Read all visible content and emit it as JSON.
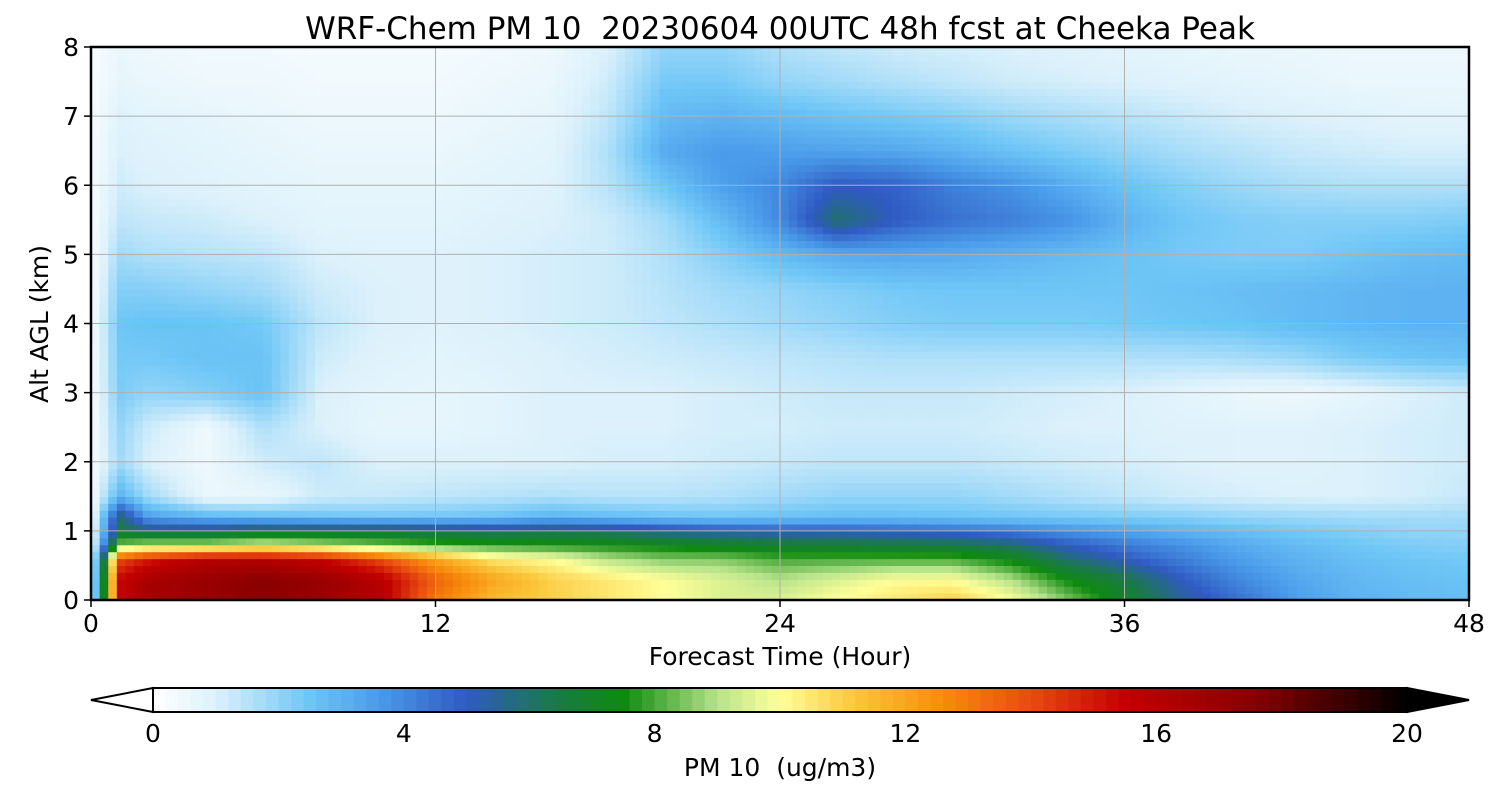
{
  "chart_data": {
    "type": "heatmap",
    "title": "WRF-Chem PM 10  20230604 00UTC 48h fcst at Cheeka Peak",
    "xlabel": "Forecast Time (Hour)",
    "ylabel": "Alt AGL (km)",
    "xlim": [
      0,
      48
    ],
    "ylim": [
      0,
      8
    ],
    "xticks": [
      0,
      12,
      24,
      36,
      48
    ],
    "yticks": [
      0,
      1,
      2,
      3,
      4,
      5,
      6,
      7,
      8
    ],
    "grid": true,
    "x": [
      0,
      1,
      2,
      4,
      6,
      8,
      10,
      12,
      14,
      16,
      18,
      20,
      22,
      24,
      26,
      28,
      30,
      32,
      34,
      36,
      38,
      40,
      42,
      44,
      46,
      48
    ],
    "y": [
      0,
      0.3,
      0.6,
      0.8,
      1.0,
      1.2,
      1.5,
      2,
      2.5,
      3,
      3.5,
      4,
      4.5,
      5,
      5.5,
      6,
      6.5,
      7,
      7.5,
      8
    ],
    "z": [
      [
        0.3,
        15.5,
        16.5,
        17.0,
        17.5,
        17.0,
        16.0,
        13.0,
        11.5,
        11.0,
        10.5,
        10.0,
        9.5,
        9.5,
        10.0,
        10.5,
        11.0,
        10.0,
        8.5,
        7.0,
        5.5,
        4.5,
        3.5,
        3.0,
        2.8,
        2.7
      ],
      [
        0.3,
        15.5,
        16.5,
        17.0,
        17.5,
        17.0,
        16.0,
        13.5,
        12.0,
        11.0,
        10.5,
        10.0,
        9.5,
        9.0,
        9.5,
        10.0,
        10.0,
        9.0,
        7.5,
        6.5,
        5.0,
        4.0,
        3.3,
        2.9,
        2.7,
        2.6
      ],
      [
        0.3,
        14.0,
        15.0,
        16.0,
        16.0,
        15.5,
        14.0,
        12.0,
        10.5,
        10.0,
        9.0,
        8.5,
        8.5,
        8.0,
        8.0,
        8.0,
        8.0,
        7.3,
        6.0,
        5.0,
        4.2,
        3.5,
        3.0,
        2.7,
        2.5,
        2.4
      ],
      [
        0.3,
        8.5,
        9.0,
        9.0,
        9.5,
        9.0,
        8.5,
        8.0,
        7.8,
        7.6,
        7.5,
        7.3,
        7.0,
        6.8,
        6.7,
        6.6,
        6.5,
        6.0,
        5.0,
        4.3,
        3.8,
        3.2,
        2.8,
        2.5,
        2.3,
        2.2
      ],
      [
        0.3,
        6.5,
        6.0,
        6.0,
        6.5,
        6.5,
        6.5,
        6.3,
        6.0,
        6.2,
        6.0,
        5.5,
        5.2,
        5.0,
        5.0,
        4.8,
        4.6,
        4.3,
        3.8,
        3.4,
        3.0,
        2.7,
        2.4,
        2.2,
        2.0,
        2.0
      ],
      [
        0.2,
        6.0,
        3.5,
        3.0,
        2.8,
        2.6,
        2.5,
        2.5,
        2.6,
        3.0,
        2.8,
        2.6,
        2.5,
        2.6,
        2.7,
        2.7,
        2.6,
        2.5,
        2.4,
        2.3,
        2.2,
        2.0,
        1.9,
        1.8,
        1.8,
        1.8
      ],
      [
        0.2,
        3.0,
        1.8,
        0.6,
        0.6,
        1.2,
        1.3,
        1.4,
        1.5,
        1.6,
        1.5,
        1.5,
        1.6,
        1.8,
        2.0,
        2.0,
        2.0,
        1.8,
        1.6,
        1.4,
        1.2,
        1.1,
        1.0,
        1.0,
        1.1,
        1.3
      ],
      [
        0.2,
        1.8,
        1.0,
        0.5,
        1.2,
        1.4,
        1.0,
        1.0,
        1.0,
        1.0,
        1.1,
        1.1,
        1.2,
        1.3,
        1.4,
        1.4,
        1.4,
        1.3,
        1.2,
        1.1,
        1.0,
        0.9,
        0.9,
        1.0,
        1.1,
        1.2
      ],
      [
        0.2,
        2.0,
        1.2,
        0.5,
        1.6,
        1.0,
        0.7,
        0.7,
        0.8,
        1.0,
        1.0,
        1.0,
        1.1,
        1.1,
        1.2,
        1.2,
        1.2,
        1.1,
        1.0,
        1.0,
        0.9,
        0.9,
        0.9,
        1.0,
        1.1,
        1.2
      ],
      [
        0.2,
        2.3,
        2.0,
        2.2,
        2.6,
        1.0,
        0.8,
        0.7,
        0.8,
        1.0,
        1.0,
        1.0,
        1.1,
        1.2,
        1.3,
        1.3,
        1.3,
        1.2,
        1.1,
        1.0,
        0.8,
        0.6,
        0.5,
        0.7,
        1.0,
        1.2
      ],
      [
        0.2,
        2.4,
        2.4,
        2.6,
        2.6,
        1.2,
        0.9,
        0.8,
        0.9,
        1.0,
        1.1,
        1.2,
        1.3,
        1.4,
        1.5,
        1.6,
        1.6,
        1.6,
        1.6,
        1.6,
        1.6,
        1.7,
        1.9,
        2.3,
        2.5,
        2.6
      ],
      [
        0.2,
        2.5,
        2.6,
        2.6,
        2.4,
        1.4,
        1.0,
        0.9,
        1.0,
        1.1,
        1.2,
        1.4,
        1.6,
        1.8,
        2.0,
        2.2,
        2.3,
        2.3,
        2.3,
        2.4,
        2.5,
        2.6,
        2.8,
        2.9,
        3.0,
        3.0
      ],
      [
        0.2,
        2.2,
        2.2,
        2.0,
        1.8,
        1.2,
        1.0,
        0.9,
        1.0,
        1.1,
        1.2,
        1.5,
        1.8,
        2.0,
        2.2,
        2.4,
        2.5,
        2.5,
        2.5,
        2.5,
        2.6,
        2.7,
        2.8,
        2.9,
        3.0,
        3.0
      ],
      [
        0.2,
        1.8,
        1.6,
        1.5,
        1.4,
        1.0,
        0.9,
        0.9,
        1.0,
        1.1,
        1.2,
        1.6,
        2.2,
        2.8,
        3.2,
        3.3,
        3.2,
        3.0,
        2.8,
        2.6,
        2.4,
        2.3,
        2.3,
        2.5,
        2.7,
        2.8
      ],
      [
        0.2,
        1.4,
        1.3,
        1.2,
        1.0,
        0.8,
        0.8,
        0.8,
        0.9,
        1.0,
        1.2,
        1.8,
        2.8,
        4.0,
        6.0,
        5.0,
        4.5,
        4.2,
        3.8,
        3.0,
        2.5,
        2.3,
        2.2,
        2.2,
        2.2,
        2.3
      ],
      [
        0.2,
        1.2,
        1.0,
        0.9,
        0.8,
        0.7,
        0.7,
        0.7,
        0.8,
        0.9,
        1.5,
        2.5,
        3.5,
        4.0,
        5.0,
        4.8,
        4.2,
        3.8,
        3.2,
        2.6,
        2.2,
        1.9,
        1.7,
        1.6,
        1.6,
        1.6
      ],
      [
        0.2,
        1.0,
        0.9,
        0.8,
        0.7,
        0.6,
        0.6,
        0.6,
        0.7,
        0.8,
        1.6,
        3.2,
        3.6,
        3.5,
        3.4,
        3.3,
        3.0,
        2.6,
        2.3,
        2.0,
        1.7,
        1.5,
        1.3,
        1.2,
        1.1,
        1.1
      ],
      [
        0.2,
        0.9,
        0.8,
        0.7,
        0.6,
        0.5,
        0.5,
        0.5,
        0.6,
        0.7,
        1.4,
        2.8,
        3.0,
        2.8,
        2.6,
        2.4,
        2.2,
        1.9,
        1.7,
        1.5,
        1.3,
        1.1,
        1.0,
        0.9,
        0.8,
        0.8
      ],
      [
        0.2,
        0.7,
        0.6,
        0.5,
        0.5,
        0.4,
        0.4,
        0.4,
        0.5,
        0.6,
        1.2,
        2.4,
        2.4,
        2.0,
        1.8,
        1.6,
        1.4,
        1.2,
        1.1,
        1.0,
        0.9,
        0.8,
        0.7,
        0.6,
        0.6,
        0.6
      ],
      [
        0.2,
        0.6,
        0.5,
        0.4,
        0.4,
        0.3,
        0.3,
        0.3,
        0.4,
        0.5,
        1.0,
        2.0,
        2.0,
        1.6,
        1.4,
        1.2,
        1.1,
        1.0,
        0.9,
        0.8,
        0.7,
        0.6,
        0.6,
        0.5,
        0.5,
        0.5
      ]
    ],
    "colorbar": {
      "label": "PM 10  (ug/m3)",
      "min": 0,
      "max": 20,
      "ticks": [
        0,
        4,
        8,
        12,
        16,
        20
      ],
      "extend": "both",
      "colors": [
        {
          "value": 0,
          "color": "#ffffff"
        },
        {
          "value": 1,
          "color": "#dcf1fb"
        },
        {
          "value": 2.5,
          "color": "#6ec6f6"
        },
        {
          "value": 3.6,
          "color": "#4a9bea"
        },
        {
          "value": 5,
          "color": "#2f5ac2"
        },
        {
          "value": 6.4,
          "color": "#1a7a48"
        },
        {
          "value": 7.5,
          "color": "#0e8a0e"
        },
        {
          "value": 9,
          "color": "#b7e38a"
        },
        {
          "value": 10,
          "color": "#ffff99"
        },
        {
          "value": 11.2,
          "color": "#fbc63a"
        },
        {
          "value": 12.6,
          "color": "#f88c0b"
        },
        {
          "value": 14,
          "color": "#e84b10"
        },
        {
          "value": 15.5,
          "color": "#c40000"
        },
        {
          "value": 17.5,
          "color": "#8a0000"
        },
        {
          "value": 19,
          "color": "#3a0000"
        },
        {
          "value": 20,
          "color": "#000000"
        }
      ]
    }
  }
}
